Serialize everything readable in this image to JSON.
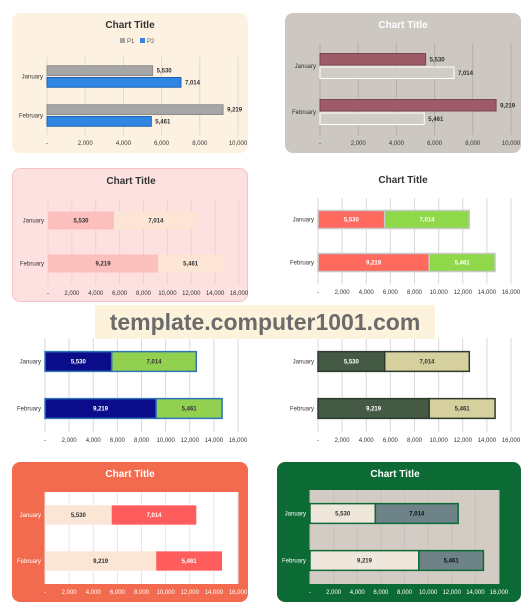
{
  "watermark": "template.computer1001.com",
  "chart_data": [
    {
      "type": "bar",
      "orientation": "horizontal",
      "stacked": false,
      "title": "Chart Title",
      "legend": [
        "P1",
        "P2"
      ],
      "legend_position": "top",
      "categories": [
        "January",
        "February"
      ],
      "series": [
        {
          "name": "P1",
          "values": [
            5530,
            9219
          ]
        },
        {
          "name": "P2",
          "values": [
            7014,
            5461
          ]
        }
      ],
      "xlim": [
        0,
        10000
      ],
      "xticks": [
        "-",
        "2,000",
        "4,000",
        "6,000",
        "8,000",
        "10,000"
      ],
      "grid": true
    },
    {
      "type": "bar",
      "orientation": "horizontal",
      "stacked": false,
      "title": "Chart Title",
      "categories": [
        "January",
        "February"
      ],
      "series": [
        {
          "values": [
            5530,
            9219
          ]
        },
        {
          "values": [
            7014,
            5461
          ]
        }
      ],
      "xlim": [
        0,
        10000
      ],
      "xticks": [
        "-",
        "2,000",
        "4,000",
        "6,000",
        "8,000",
        "10,000"
      ],
      "grid": true
    },
    {
      "type": "bar",
      "orientation": "horizontal",
      "stacked": true,
      "title": "Chart Title",
      "categories": [
        "January",
        "February"
      ],
      "series": [
        {
          "values": [
            5530,
            9219
          ]
        },
        {
          "values": [
            7014,
            5461
          ]
        }
      ],
      "xlim": [
        0,
        16000
      ],
      "xticks": [
        "-",
        "2,000",
        "4,000",
        "6,000",
        "8,000",
        "10,000",
        "12,000",
        "14,000",
        "16,000"
      ],
      "grid": true
    },
    {
      "type": "bar",
      "orientation": "horizontal",
      "stacked": true,
      "title": "Chart Title",
      "categories": [
        "January",
        "February"
      ],
      "series": [
        {
          "values": [
            5530,
            9219
          ]
        },
        {
          "values": [
            7014,
            5461
          ]
        }
      ],
      "xlim": [
        0,
        16000
      ],
      "xticks": [
        "-",
        "2,000",
        "4,000",
        "6,000",
        "8,000",
        "10,000",
        "12,000",
        "14,000",
        "16,000"
      ],
      "grid": true
    },
    {
      "type": "bar",
      "orientation": "horizontal",
      "stacked": true,
      "categories": [
        "January",
        "February"
      ],
      "series": [
        {
          "values": [
            5530,
            9219
          ]
        },
        {
          "values": [
            7014,
            5461
          ]
        }
      ],
      "xlim": [
        0,
        16000
      ],
      "xticks": [
        "-",
        "2,000",
        "4,000",
        "6,000",
        "8,000",
        "10,000",
        "12,000",
        "14,000",
        "16,000"
      ],
      "grid": true
    },
    {
      "type": "bar",
      "orientation": "horizontal",
      "stacked": true,
      "categories": [
        "January",
        "February"
      ],
      "series": [
        {
          "values": [
            5530,
            9219
          ]
        },
        {
          "values": [
            7014,
            5461
          ]
        }
      ],
      "xlim": [
        0,
        16000
      ],
      "xticks": [
        "-",
        "2,000",
        "4,000",
        "6,000",
        "8,000",
        "10,000",
        "12,000",
        "14,000",
        "16,000"
      ],
      "grid": true
    },
    {
      "type": "bar",
      "orientation": "horizontal",
      "stacked": true,
      "title": "Chart Title",
      "categories": [
        "January",
        "February"
      ],
      "series": [
        {
          "values": [
            5530,
            9219
          ]
        },
        {
          "values": [
            7014,
            5461
          ]
        }
      ],
      "xlim": [
        0,
        16000
      ],
      "xticks": [
        "-",
        "2,000",
        "4,000",
        "6,000",
        "8,000",
        "10,000",
        "12,000",
        "14,000",
        "16,000"
      ],
      "grid": true
    },
    {
      "type": "bar",
      "orientation": "horizontal",
      "stacked": true,
      "title": "Chart Title",
      "categories": [
        "January",
        "February"
      ],
      "series": [
        {
          "values": [
            5530,
            9219
          ]
        },
        {
          "values": [
            7014,
            5461
          ]
        }
      ],
      "xlim": [
        0,
        16000
      ],
      "xticks": [
        "-",
        "2,000",
        "4,000",
        "6,000",
        "8,000",
        "10,000",
        "12,000",
        "14,000",
        "16,000"
      ],
      "grid": true
    }
  ],
  "styles": [
    {
      "titleColor": "#333333",
      "labelColor": "#333333",
      "gridColor": "#d9d9d9",
      "plotBg": "none",
      "colors": [
        "#a6a6a6",
        "#2f86e3"
      ],
      "strokes": [
        "#8c8c8c",
        "#1f5fb0"
      ],
      "labelInside": false
    },
    {
      "titleColor": "#ffffff",
      "labelColor": "#333333",
      "gridColor": "#b3aca6",
      "plotBg": "none",
      "colors": [
        "#9c5b67",
        "#d2ccc6"
      ],
      "strokes": [
        "#7a4450",
        "#ffffff"
      ],
      "labelInside": false
    },
    {
      "titleColor": "#333333",
      "labelColor": "#333333",
      "gridColor": "#f3cfcf",
      "plotBg": "none",
      "colors": [
        "#fbc0bd",
        "#fde5d5"
      ],
      "strokes": [
        "none",
        "none"
      ],
      "labelInside": true
    },
    {
      "titleColor": "#333333",
      "labelColor": "#333333",
      "gridColor": "#d9d9d9",
      "plotBg": "none",
      "colors": [
        "#ff6a5e",
        "#8ed84a"
      ],
      "strokes": [
        "#c9c9c9",
        "#c9c9c9"
      ],
      "labelInside": true,
      "valueColor": "#ffffff"
    },
    {
      "titleColor": "#333333",
      "labelColor": "#333333",
      "gridColor": "#d9d9d9",
      "plotBg": "none",
      "colors": [
        "#0b0c8a",
        "#92d050"
      ],
      "strokes": [
        "#2e75b6",
        "#2e75b6"
      ],
      "labelInside": true,
      "valueColors": [
        "#ffffff",
        "#333333"
      ]
    },
    {
      "titleColor": "#333333",
      "labelColor": "#333333",
      "gridColor": "#d9d9d9",
      "plotBg": "none",
      "colors": [
        "#445a45",
        "#d6cf9e"
      ],
      "strokes": [
        "#2d3a2e",
        "#2d3a2e"
      ],
      "labelInside": true,
      "valueColors": [
        "#ffffff",
        "#333333"
      ]
    },
    {
      "titleColor": "#ffffff",
      "labelColor": "#ffffff",
      "gridColor": "#e6e6e6",
      "plotBg": "#ffffff",
      "colors": [
        "#fbe6d5",
        "#ff5d5d"
      ],
      "strokes": [
        "none",
        "none"
      ],
      "labelInside": true,
      "valueColors": [
        "#333333",
        "#ffffff"
      ]
    },
    {
      "titleColor": "#ffffff",
      "labelColor": "#ffffff",
      "gridColor": "#c7c1bb",
      "plotBg": "#d3ccc4",
      "colors": [
        "#f0e7dc",
        "#6e8387"
      ],
      "strokes": [
        "#0c6b35",
        "#0c6b35"
      ],
      "labelInside": true,
      "valueColors": [
        "#333333",
        "#111111"
      ]
    }
  ]
}
